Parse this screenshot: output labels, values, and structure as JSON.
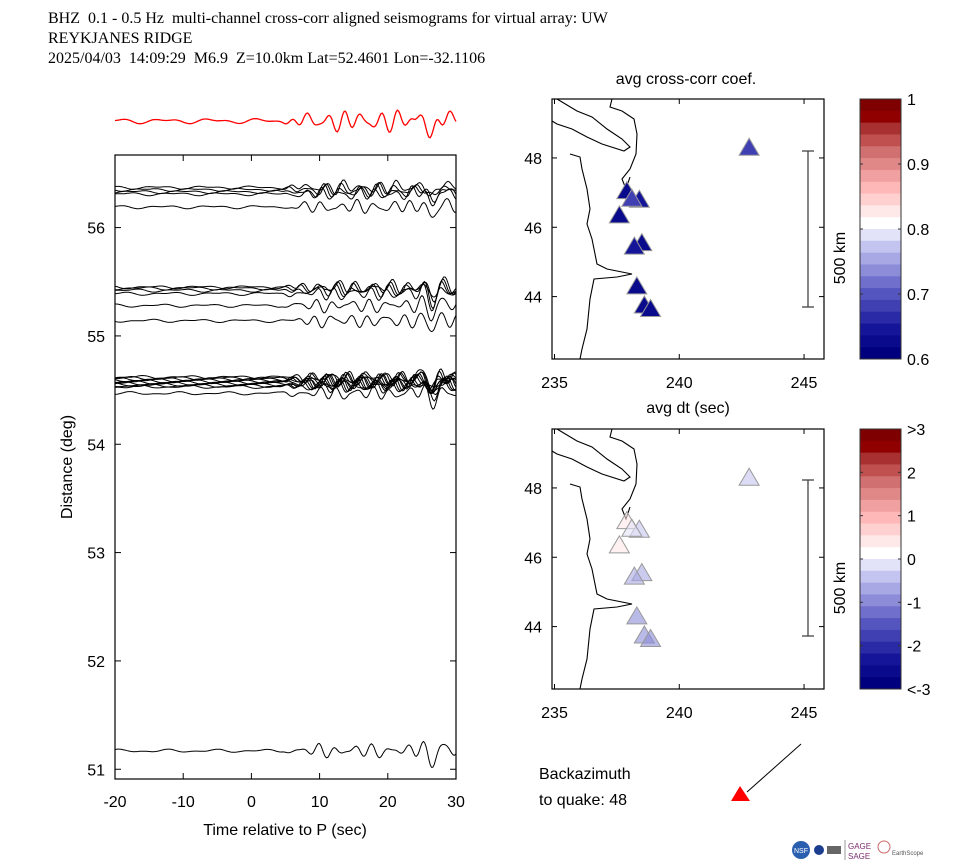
{
  "header": {
    "line1": "BHZ  0.1 - 0.5 Hz  multi-channel cross-corr aligned seismograms for virtual array: UW",
    "line2": "REYKJANES RIDGE",
    "line3": "2025/04/03  14:09:29  M6.9  Z=10.0km Lat=52.4601 Lon=-32.1106"
  },
  "backazimuth": {
    "label_line1": "Backazimuth",
    "label_line2": "to quake:  48",
    "value": 48,
    "marker_color": "#ff0000"
  },
  "logos": [
    "NSF",
    "NASA",
    "DOE",
    "GAGE",
    "SAGE",
    "EarthScope Consortium"
  ],
  "chart_data": [
    {
      "id": "seismograms",
      "type": "line",
      "title": "",
      "xlabel": "Time relative to P (sec)",
      "ylabel": "Distance (deg)",
      "xlim": [
        -20,
        30
      ],
      "ylim": [
        50.91,
        56.67
      ],
      "xticks": [
        -20,
        -10,
        0,
        10,
        20,
        30
      ],
      "yticks": [
        51,
        52,
        53,
        54,
        55,
        56
      ],
      "stack_trace_color": "#ff0000",
      "trace_color": "#000000",
      "trace_groups": [
        {
          "distance_offsets": [
            56.37,
            56.35,
            56.33,
            56.31,
            56.19
          ],
          "count": 5
        },
        {
          "distance_offsets": [
            55.45,
            55.44,
            55.42,
            55.39,
            55.28,
            55.14
          ],
          "count": 6
        },
        {
          "distance_offsets": [
            54.62,
            54.61,
            54.6,
            54.59,
            54.58,
            54.57,
            54.56,
            54.55,
            54.54,
            54.53,
            54.47
          ],
          "count": 11
        },
        {
          "distance_offsets": [
            51.17
          ],
          "count": 1
        }
      ]
    },
    {
      "id": "map-ccc",
      "type": "scatter",
      "title": "avg cross-corr coef.",
      "xlabel": "avg dt (sec)",
      "ylabel": "",
      "xlim": [
        234.9,
        245.8
      ],
      "ylim": [
        42.2,
        49.7
      ],
      "xticks": [
        235,
        240,
        245
      ],
      "yticks": [
        44,
        46,
        48
      ],
      "scale_bar_label": "500 km",
      "colorbar": {
        "min": 0.6,
        "max": 1.0,
        "ticks": [
          "1",
          "0.9",
          "0.8",
          "0.7",
          "0.6"
        ]
      },
      "points": [
        {
          "x": 242.8,
          "y": 48.25,
          "value": 0.68
        },
        {
          "x": 237.9,
          "y": 47.0,
          "value": 0.61
        },
        {
          "x": 238.4,
          "y": 46.75,
          "value": 0.63
        },
        {
          "x": 238.1,
          "y": 46.78,
          "value": 0.68
        },
        {
          "x": 237.6,
          "y": 46.3,
          "value": 0.61
        },
        {
          "x": 238.5,
          "y": 45.5,
          "value": 0.62
        },
        {
          "x": 238.2,
          "y": 45.4,
          "value": 0.63
        },
        {
          "x": 238.3,
          "y": 44.25,
          "value": 0.61
        },
        {
          "x": 238.6,
          "y": 43.7,
          "value": 0.62
        },
        {
          "x": 238.85,
          "y": 43.6,
          "value": 0.61
        }
      ]
    },
    {
      "id": "map-dt",
      "type": "scatter",
      "title": "",
      "xlabel": "",
      "ylabel": "",
      "xlim": [
        234.9,
        245.8
      ],
      "ylim": [
        42.2,
        49.7
      ],
      "xticks": [
        235,
        240,
        245
      ],
      "yticks": [
        44,
        46,
        48
      ],
      "scale_bar_label": "500 km",
      "colorbar": {
        "min": -3,
        "max": 3,
        "ticks": [
          ">3",
          "2",
          "1",
          "0",
          "-1",
          "-2",
          "<-3"
        ]
      },
      "points": [
        {
          "x": 242.8,
          "y": 48.25,
          "value": -0.5
        },
        {
          "x": 237.9,
          "y": 47.0,
          "value": 0.4
        },
        {
          "x": 238.4,
          "y": 46.75,
          "value": -0.5
        },
        {
          "x": 238.1,
          "y": 46.78,
          "value": -0.2
        },
        {
          "x": 237.6,
          "y": 46.3,
          "value": 0.4
        },
        {
          "x": 238.5,
          "y": 45.5,
          "value": -0.6
        },
        {
          "x": 238.2,
          "y": 45.4,
          "value": -0.7
        },
        {
          "x": 238.3,
          "y": 44.25,
          "value": -1.1
        },
        {
          "x": 238.6,
          "y": 43.7,
          "value": -1.1
        },
        {
          "x": 238.85,
          "y": 43.6,
          "value": -1.0
        }
      ]
    }
  ]
}
